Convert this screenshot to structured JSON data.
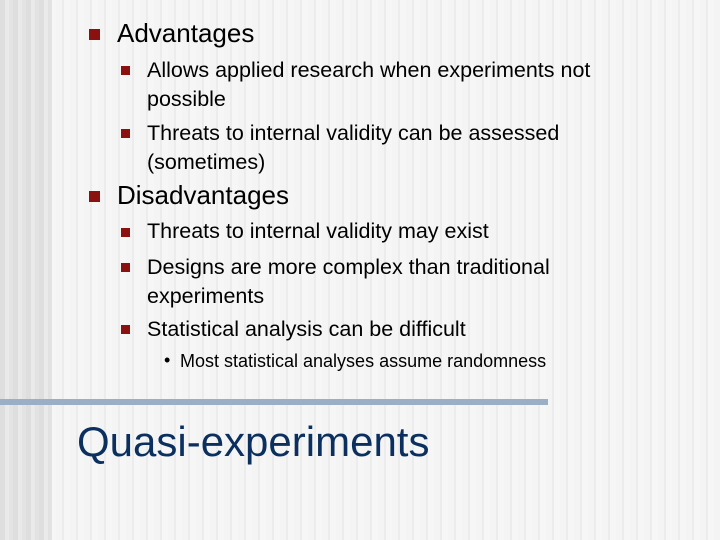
{
  "bullets": [
    {
      "text": "Advantages",
      "children": [
        {
          "text": "Allows applied research when experiments not possible"
        },
        {
          "text": "Threats to internal validity can be assessed (sometimes)"
        }
      ]
    },
    {
      "text": "Disadvantages",
      "children": [
        {
          "text": "Threats to internal validity may exist"
        },
        {
          "text": "Designs are more complex than traditional experiments"
        },
        {
          "text": "Statistical analysis can be difficult",
          "children": [
            {
              "text": "Most statistical analyses assume randomness"
            }
          ]
        }
      ]
    }
  ],
  "title": "Quasi-experiments",
  "colors": {
    "bullet": "#8b1010",
    "title": "#0b2f5e",
    "bar": "#9aaec6"
  }
}
